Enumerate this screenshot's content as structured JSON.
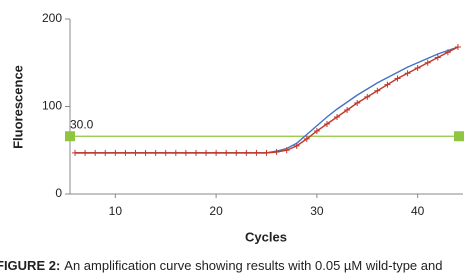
{
  "chart_data": {
    "type": "line",
    "x_label": "Cycles",
    "y_label": "Fluorescence",
    "x": [
      6,
      7,
      8,
      9,
      10,
      11,
      12,
      13,
      14,
      15,
      16,
      17,
      18,
      19,
      20,
      21,
      22,
      23,
      24,
      25,
      26,
      27,
      28,
      29,
      30,
      31,
      32,
      33,
      34,
      35,
      36,
      37,
      38,
      39,
      40,
      41,
      42,
      43,
      44
    ],
    "series": [
      {
        "color": "#4472c4",
        "marker": "none",
        "values": [
          47,
          47,
          47,
          47,
          47,
          47,
          47,
          47,
          47,
          47,
          47,
          47,
          47,
          47,
          47,
          47,
          47,
          47,
          47,
          47,
          49,
          52,
          58,
          68,
          78,
          88,
          97,
          105,
          113,
          120,
          127,
          133,
          139,
          145,
          150,
          155,
          160,
          164,
          168
        ]
      },
      {
        "color": "#c0392b",
        "marker": "plus",
        "values": [
          47,
          47,
          47,
          47,
          47,
          47,
          47,
          47,
          47,
          47,
          47,
          47,
          47,
          47,
          47,
          47,
          47,
          47,
          47,
          47,
          48,
          50,
          55,
          63,
          72,
          80,
          88,
          96,
          104,
          111,
          118,
          125,
          132,
          138,
          144,
          150,
          156,
          162,
          168
        ]
      }
    ],
    "threshold": {
      "value": 66,
      "color": "#8fc63f"
    },
    "annotation": "30.0",
    "xlim": [
      5.5,
      44.5
    ],
    "xticks": [
      10,
      20,
      30,
      40
    ],
    "ylim": [
      0,
      200
    ],
    "yticks": [
      0,
      100,
      200
    ],
    "caption_label": "FIGURE 2:",
    "caption": "An amplification curve showing results with 0.05 µM wild-type and"
  }
}
